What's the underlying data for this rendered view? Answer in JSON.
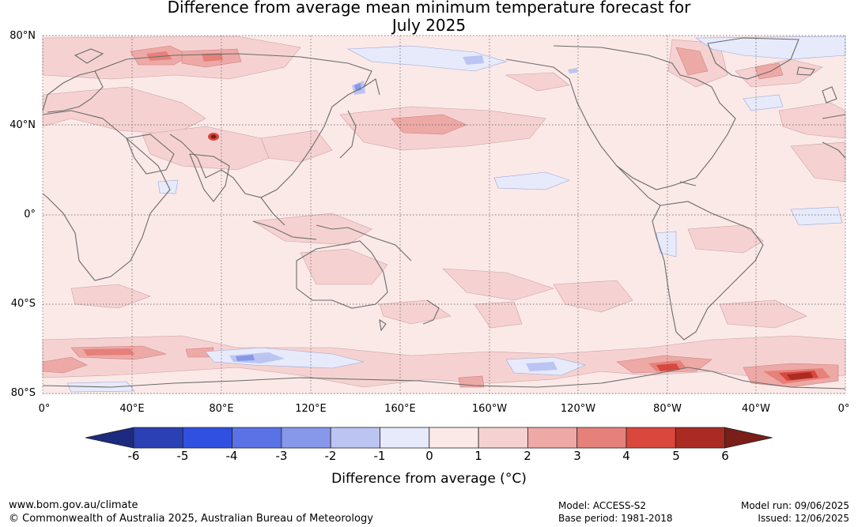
{
  "title_line1": "Difference from average mean minimum temperature forecast for",
  "title_line2": "July 2025",
  "lat_labels": [
    "80°N",
    "40°N",
    "0°",
    "40°S",
    "80°S"
  ],
  "lon_labels": [
    "0°",
    "40°E",
    "80°E",
    "120°E",
    "160°E",
    "160°W",
    "120°W",
    "80°W",
    "40°W",
    "0°"
  ],
  "colorbar": {
    "ticks": [
      "-6",
      "-5",
      "-4",
      "-3",
      "-2",
      "-1",
      "0",
      "1",
      "2",
      "3",
      "4",
      "5",
      "6"
    ],
    "colors": [
      "#1c2b80",
      "#2a40b3",
      "#2f50e0",
      "#5a72e6",
      "#8797ea",
      "#bcc5f2",
      "#e6eafa",
      "#fbe9e8",
      "#f5d2d1",
      "#eda9a5",
      "#e6807a",
      "#d9473d",
      "#aa2b24",
      "#7a1e18"
    ],
    "label": "Difference from average (",
    "label_unit": "°C",
    "label_close": ")"
  },
  "footer": {
    "website": "www.bom.gov.au/climate",
    "copyright": "© Commonwealth of Australia 2025, Australian Bureau of Meteorology",
    "model": "Model: ACCESS-S2",
    "base_period": "Base period: 1981-2018",
    "model_run": "Model run: 09/06/2025",
    "issued": "Issued: 12/06/2025"
  }
}
